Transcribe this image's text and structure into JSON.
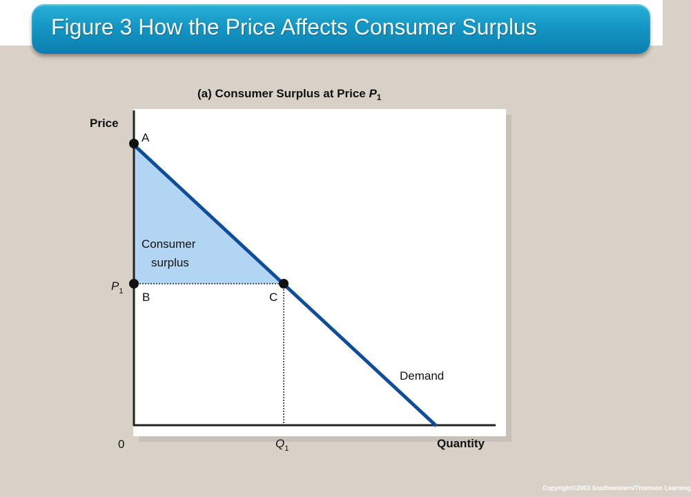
{
  "title": "Figure 3 How the Price Affects Consumer Surplus",
  "panel": {
    "title_prefix": "(a) Consumer Surplus at Price ",
    "title_var": "P",
    "title_sub": "1"
  },
  "labels": {
    "price_axis": "Price",
    "quantity_axis": "Quantity",
    "origin": "0",
    "point_a": "A",
    "point_b": "B",
    "point_c": "C",
    "p1_var": "P",
    "p1_sub": "1",
    "q1_var": "Q",
    "q1_sub": "1",
    "consumer_line1": "Consumer",
    "consumer_line2": "surplus",
    "demand": "Demand"
  },
  "colors": {
    "demand_line": "#0e4d9c",
    "surplus_fill": "#b3d5f4",
    "title_bar": "#1496c4"
  },
  "copyright": "Copyright©2003  Southwestern/Thomson Learning"
}
